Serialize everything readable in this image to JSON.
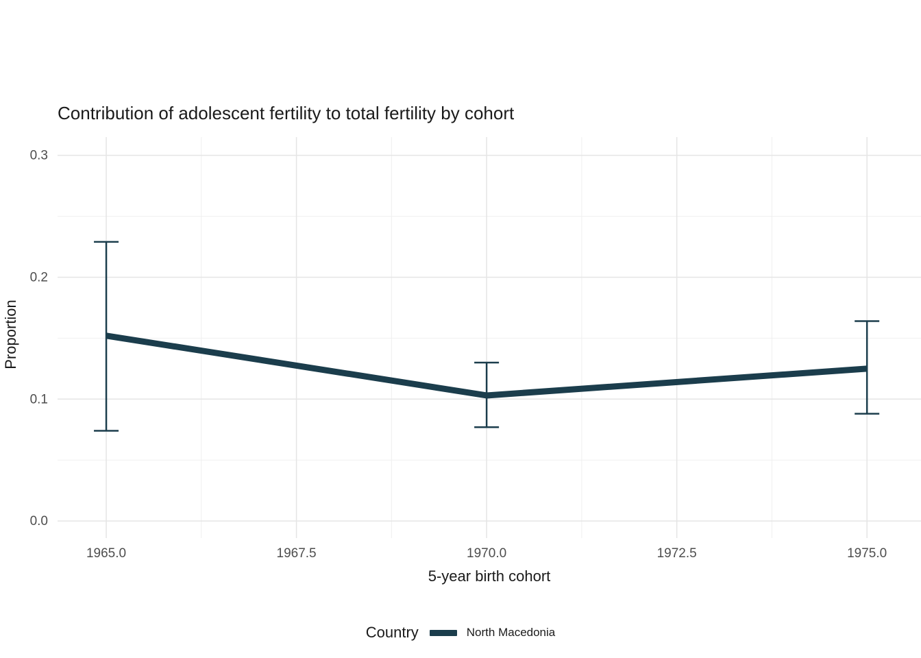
{
  "chart_data": {
    "type": "line",
    "title": "Contribution of adolescent fertility to total fertility by cohort",
    "xlabel": "5-year birth cohort",
    "ylabel": "Proportion",
    "x": [
      1965,
      1970,
      1975
    ],
    "series": [
      {
        "name": "North Macedonia",
        "values": [
          0.152,
          0.103,
          0.125
        ],
        "ymin": [
          0.074,
          0.077,
          0.088
        ],
        "ymax": [
          0.229,
          0.13,
          0.164
        ]
      }
    ],
    "xlim": [
      1964.36,
      1975.71
    ],
    "ylim": [
      -0.014,
      0.315
    ],
    "xticks": {
      "values": [
        1965,
        1967.5,
        1970,
        1972.5,
        1975
      ],
      "labels": [
        "1965.0",
        "1967.5",
        "1970.0",
        "1972.5",
        "1975.0"
      ]
    },
    "yticks": {
      "values": [
        0,
        0.1,
        0.2,
        0.3
      ],
      "labels": [
        "0.0",
        "0.1",
        "0.2",
        "0.3"
      ]
    },
    "minor_xticks": [
      1966.25,
      1968.75,
      1971.25,
      1973.75
    ],
    "minor_yticks": [
      0.05,
      0.15,
      0.25
    ],
    "grid": true,
    "legend": {
      "title": "Country",
      "position": "bottom",
      "entries": [
        {
          "label": "North Macedonia"
        }
      ]
    },
    "colors": {
      "line": "#1b3d4c",
      "grid_major": "#e5e5e5",
      "grid_minor": "#efefef",
      "tick_text": "#4d4d4d",
      "text": "#1a1a1a",
      "background": "#ffffff"
    }
  }
}
